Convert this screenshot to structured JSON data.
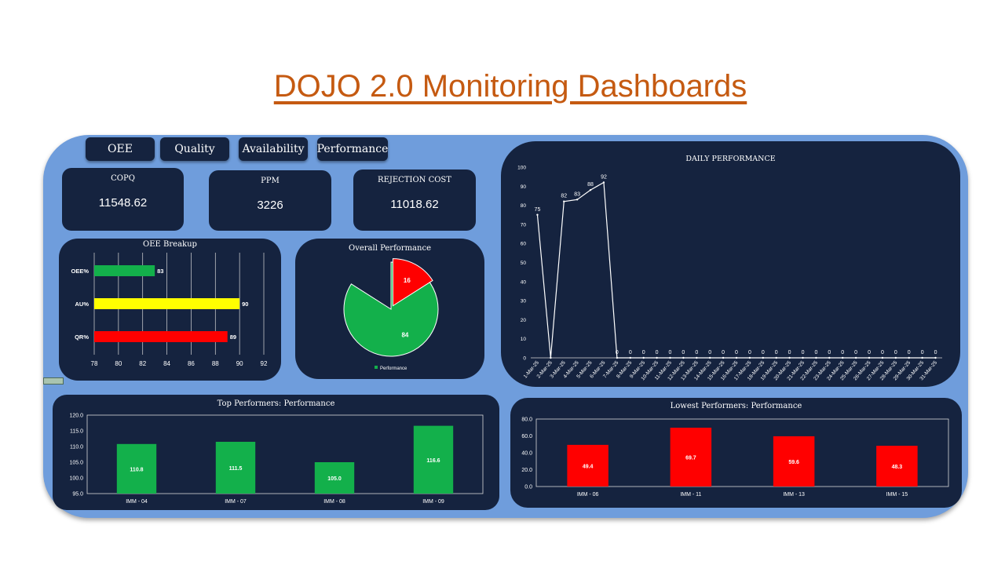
{
  "title": "DOJO 2.0 Monitoring Dashboards",
  "tabs": [
    "OEE",
    "Quality",
    "Availability",
    "Performance"
  ],
  "kpis": [
    {
      "label": "COPQ",
      "value": "11548.62"
    },
    {
      "label": "PPM",
      "value": "3226"
    },
    {
      "label": "REJECTION COST",
      "value": "11018.62"
    }
  ],
  "colors": {
    "panel": "#15233f",
    "board": "#6f9ddc",
    "green": "#13b04b",
    "yellow": "#ffff00",
    "red": "#ff0000",
    "title": "#c55a11"
  },
  "oee_chart": {
    "title": "OEE Breakup",
    "type": "bar",
    "orientation": "horizontal",
    "categories": [
      "OEE%",
      "AU%",
      "QR%"
    ],
    "values": [
      83,
      90,
      89
    ],
    "bar_colors": [
      "#13b04b",
      "#ffff00",
      "#ff0000"
    ],
    "xticks": [
      "78",
      "80",
      "82",
      "84",
      "86",
      "88",
      "90",
      "92"
    ],
    "xlim": [
      78,
      92
    ]
  },
  "pie_chart": {
    "title": "Overall Performance",
    "type": "pie",
    "slices": [
      {
        "value": 84,
        "color": "#13b04b"
      },
      {
        "value": 16,
        "color": "#ff0000"
      }
    ],
    "legend": "Performance"
  },
  "daily_chart": {
    "title": "DAILY PERFORMANCE",
    "type": "line",
    "yticks": [
      "0",
      "10",
      "20",
      "30",
      "40",
      "50",
      "60",
      "70",
      "80",
      "90",
      "100"
    ],
    "ylim": [
      0,
      100
    ],
    "x": [
      "1-Mar-25",
      "2-Mar-25",
      "3-Mar-25",
      "4-Mar-25",
      "5-Mar-25",
      "6-Mar-25",
      "7-Mar-25",
      "8-Mar-25",
      "9-Mar-25",
      "10-Mar-25",
      "11-Mar-25",
      "12-Mar-25",
      "13-Mar-25",
      "14-Mar-25",
      "15-Mar-25",
      "16-Mar-25",
      "17-Mar-25",
      "18-Mar-25",
      "19-Mar-25",
      "20-Mar-25",
      "21-Mar-25",
      "22-Mar-25",
      "23-Mar-25",
      "24-Mar-25",
      "25-Mar-25",
      "26-Mar-25",
      "27-Mar-25",
      "28-Mar-25",
      "29-Mar-25",
      "30-Mar-25",
      "31-Mar-25"
    ],
    "values": [
      75,
      0,
      82,
      83,
      88,
      92,
      0,
      0,
      0,
      0,
      0,
      0,
      0,
      0,
      0,
      0,
      0,
      0,
      0,
      0,
      0,
      0,
      0,
      0,
      0,
      0,
      0,
      0,
      0,
      0,
      0
    ],
    "labels": [
      "75",
      "",
      "82",
      "83",
      "88",
      "92",
      "0",
      "0",
      "0",
      "0",
      "0",
      "0",
      "0",
      "0",
      "0",
      "0",
      "0",
      "0",
      "0",
      "0",
      "0",
      "0",
      "0",
      "0",
      "0",
      "0",
      "0",
      "0",
      "0",
      "0",
      "0"
    ]
  },
  "top_chart": {
    "title": "Top Performers: Performance",
    "type": "bar",
    "categories": [
      "IMM - 04",
      "IMM - 07",
      "IMM - 08",
      "IMM - 09"
    ],
    "values": [
      110.8,
      111.5,
      105.0,
      116.6
    ],
    "labels": [
      "110.8",
      "111.5",
      "105.0",
      "116.6"
    ],
    "yticks": [
      "95.0",
      "100.0",
      "105.0",
      "110.0",
      "115.0",
      "120.0"
    ],
    "ylim": [
      95,
      120
    ],
    "color": "#13b04b"
  },
  "low_chart": {
    "title": "Lowest Performers: Performance",
    "type": "bar",
    "categories": [
      "IMM - 06",
      "IMM - 11",
      "IMM - 13",
      "IMM - 15"
    ],
    "values": [
      49.4,
      69.7,
      59.6,
      48.3
    ],
    "labels": [
      "49.4",
      "69.7",
      "59.6",
      "48.3"
    ],
    "yticks": [
      "0.0",
      "20.0",
      "40.0",
      "60.0",
      "80.0"
    ],
    "ylim": [
      0,
      80
    ],
    "color": "#ff0000"
  }
}
